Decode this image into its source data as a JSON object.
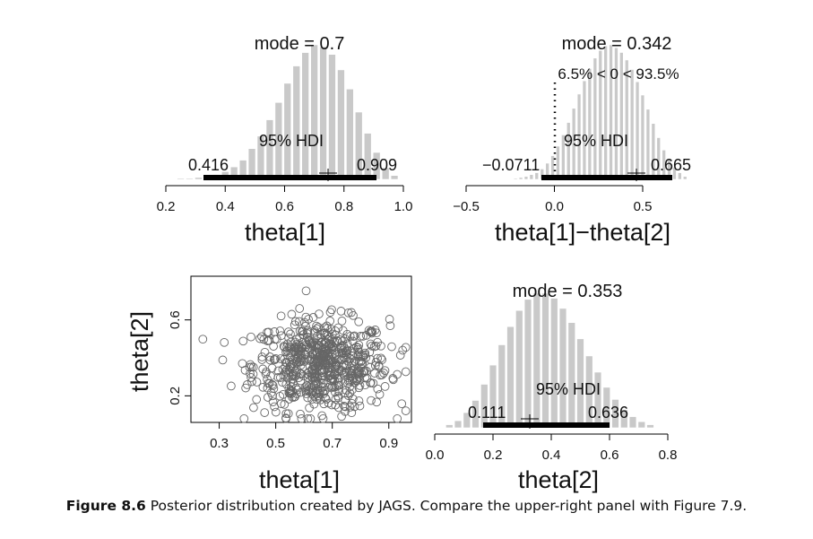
{
  "chart_data": [
    {
      "type": "bar",
      "panel": "histogram",
      "xlabel": "theta[1]",
      "xlim": [
        0.2,
        1.0
      ],
      "xticks": [
        "0.2",
        "0.4",
        "0.6",
        "0.8",
        "1.0"
      ],
      "mode_label": "mode = 0.7",
      "hdi_label": "95% HDI",
      "hdi": [
        0.416,
        0.909
      ],
      "hdi_low_label": "0.416",
      "hdi_high_label": "0.909",
      "mean": 0.74,
      "bins": [
        0.25,
        0.28,
        0.31,
        0.34,
        0.37,
        0.4,
        0.43,
        0.46,
        0.49,
        0.52,
        0.55,
        0.58,
        0.61,
        0.64,
        0.67,
        0.7,
        0.73,
        0.76,
        0.79,
        0.82,
        0.85,
        0.88,
        0.91,
        0.94,
        0.97
      ],
      "values": [
        1,
        1,
        2,
        3,
        5,
        8,
        13,
        20,
        32,
        45,
        62,
        80,
        100,
        118,
        132,
        140,
        138,
        130,
        114,
        94,
        70,
        48,
        28,
        12,
        4
      ]
    },
    {
      "type": "bar",
      "panel": "histogram",
      "xlabel": "theta[1]−theta[2]",
      "xlim": [
        -0.5,
        0.5
      ],
      "xticks": [
        "−0.5",
        "0.0",
        "0.5"
      ],
      "mode_label": "mode = 0.342",
      "comp_label": "6.5% < 0 < 93.5%",
      "comp_value": 0,
      "hdi_label": "95% HDI",
      "hdi": [
        -0.0711,
        0.665
      ],
      "hdi_low_label": "−0.0711",
      "hdi_high_label": "0.665",
      "mean": 0.39,
      "bins": [
        -0.22,
        -0.19,
        -0.16,
        -0.13,
        -0.1,
        -0.07,
        -0.04,
        -0.01,
        0.02,
        0.05,
        0.08,
        0.11,
        0.14,
        0.17,
        0.2,
        0.23,
        0.26,
        0.29,
        0.32,
        0.35,
        0.38,
        0.41,
        0.44,
        0.47,
        0.5,
        0.53,
        0.56,
        0.59,
        0.62,
        0.65,
        0.68,
        0.71,
        0.74
      ],
      "values": [
        1,
        2,
        3,
        5,
        7,
        11,
        17,
        25,
        35,
        47,
        60,
        75,
        90,
        104,
        117,
        128,
        136,
        141,
        142,
        139,
        134,
        126,
        116,
        103,
        89,
        74,
        59,
        44,
        31,
        21,
        13,
        7,
        3
      ]
    },
    {
      "type": "scatter",
      "panel": "scatter",
      "xlabel": "theta[1]",
      "ylabel": "theta[2]",
      "xticks": [
        "0.3",
        "0.5",
        "0.7",
        "0.9"
      ],
      "yticks": [
        "0.2",
        "0.6"
      ],
      "xlim": [
        0.2,
        0.98
      ],
      "ylim": [
        0.06,
        0.83
      ],
      "n_points": 650
    },
    {
      "type": "bar",
      "panel": "histogram",
      "xlabel": "theta[2]",
      "xlim": [
        0.0,
        0.8
      ],
      "xticks": [
        "0.0",
        "0.2",
        "0.4",
        "0.6",
        "0.8"
      ],
      "mode_label": "mode = 0.353",
      "hdi_label": "95% HDI",
      "hdi": [
        0.111,
        0.636
      ],
      "hdi_low_label": "0.111",
      "hdi_high_label": "0.636",
      "mean": 0.27,
      "bins": [
        0.05,
        0.08,
        0.11,
        0.14,
        0.17,
        0.2,
        0.23,
        0.26,
        0.29,
        0.32,
        0.35,
        0.38,
        0.41,
        0.44,
        0.47,
        0.5,
        0.53,
        0.56,
        0.59,
        0.62,
        0.65,
        0.68,
        0.71,
        0.74
      ],
      "values": [
        3,
        7,
        15,
        27,
        43,
        62,
        82,
        100,
        116,
        127,
        133,
        133,
        128,
        118,
        104,
        88,
        71,
        55,
        40,
        28,
        18,
        11,
        6,
        3
      ]
    }
  ],
  "caption": {
    "figure_label": "Figure 8.6",
    "text": "  Posterior distribution created by JAGS. Compare the upper-right panel with Figure 7.9."
  }
}
